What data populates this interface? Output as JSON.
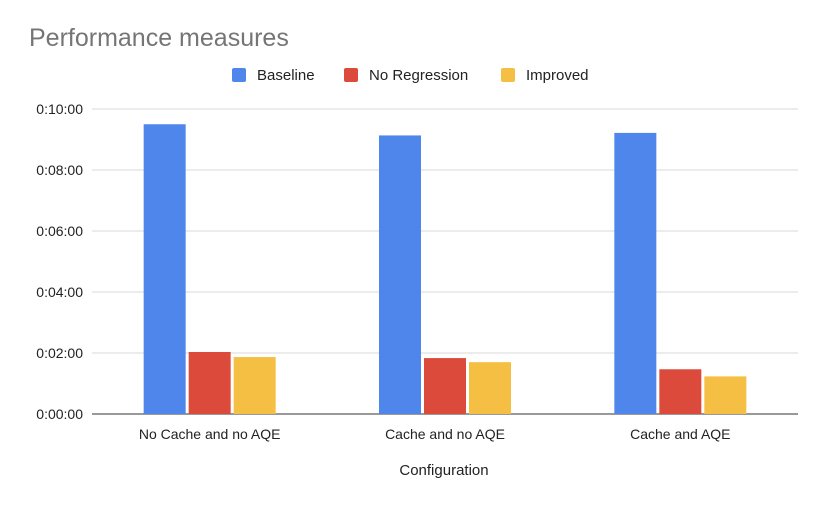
{
  "chart_data": {
    "type": "bar",
    "title": "Performance measures",
    "xlabel": "Configuration",
    "ylabel": "",
    "categories": [
      "No Cache and no AQE",
      "Cache and no AQE",
      "Cache and AQE"
    ],
    "series": [
      {
        "name": "Baseline",
        "color": "#4f86ec",
        "values": [
          570,
          548,
          553
        ]
      },
      {
        "name": "No Regression",
        "color": "#db4a3a",
        "values": [
          122,
          110,
          88
        ]
      },
      {
        "name": "Improved",
        "color": "#f4bf42",
        "values": [
          112,
          102,
          74
        ]
      }
    ],
    "ylim": [
      0,
      600
    ],
    "yticks": [
      0,
      120,
      240,
      360,
      480,
      600
    ],
    "ytick_labels": [
      "0:00:00",
      "0:02:00",
      "0:04:00",
      "0:06:00",
      "0:08:00",
      "0:10:00"
    ],
    "y_units": "seconds",
    "legend_position": "top-center",
    "grid": true
  }
}
